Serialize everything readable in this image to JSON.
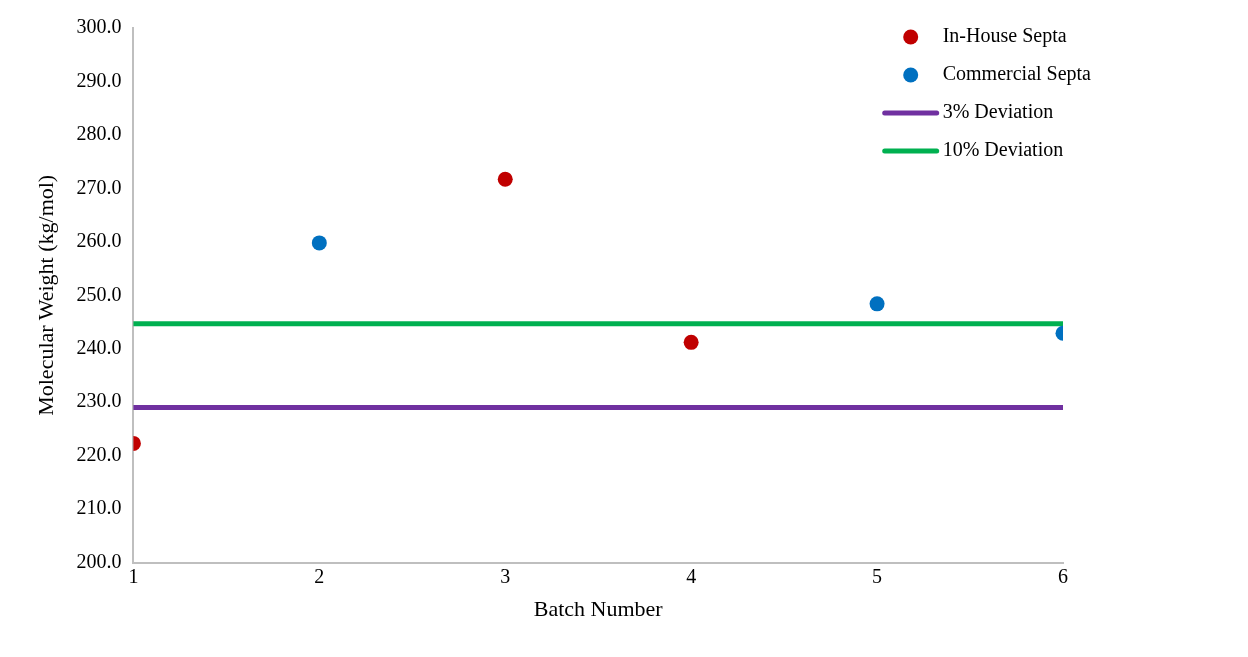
{
  "chart_data": {
    "type": "scatter",
    "xlabel": "Batch Number",
    "ylabel": "Molecular Weight (kg/mol)",
    "xlim": [
      1,
      6
    ],
    "xticks": [
      1,
      2,
      3,
      4,
      5,
      6
    ],
    "ylim": [
      200,
      300
    ],
    "yticks": [
      {
        "value": 200,
        "label": "200.0"
      },
      {
        "value": 210,
        "label": "210.0"
      },
      {
        "value": 220,
        "label": "220.0"
      },
      {
        "value": 230,
        "label": "230.0"
      },
      {
        "value": 240,
        "label": "240.0"
      },
      {
        "value": 250,
        "label": "250.0"
      },
      {
        "value": 260,
        "label": "260.0"
      },
      {
        "value": 270,
        "label": "270.0"
      },
      {
        "value": 280,
        "label": "280.0"
      },
      {
        "value": 290,
        "label": "290.0"
      },
      {
        "value": 300,
        "label": "300.0"
      }
    ],
    "grid": false,
    "legend": "top right",
    "marker": "circle",
    "series": [
      {
        "name": "In-House Septa",
        "color": "#c00000",
        "x": [
          1,
          3,
          4
        ],
        "values": [
          222.3,
          271.7,
          241.2
        ]
      },
      {
        "name": "Commercial Septa",
        "color": "#0070c0",
        "x": [
          2,
          5,
          6
        ],
        "values": [
          259.8,
          248.4,
          242.9
        ]
      },
      {
        "name": "3% Deviation",
        "type": "line",
        "marker": "none",
        "color": "#7030a0",
        "x": [
          1,
          6
        ],
        "values": [
          229.0,
          229.0
        ]
      },
      {
        "name": "10% Deviation",
        "type": "line",
        "marker": "none",
        "color": "#00b050",
        "x": [
          1,
          6
        ],
        "values": [
          244.7,
          244.7
        ]
      }
    ]
  }
}
